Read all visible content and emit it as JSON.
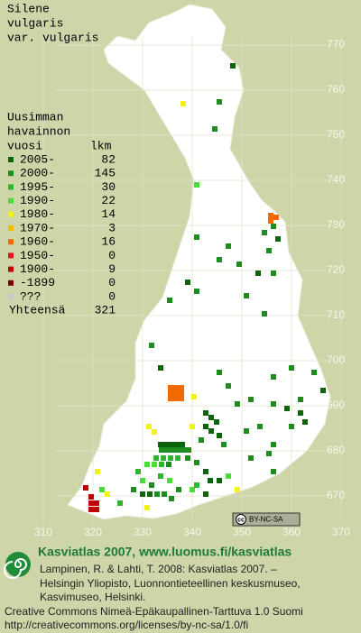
{
  "title": [
    "Silene",
    "vulgaris",
    "var. vulgaris"
  ],
  "legend": {
    "header": [
      "Uusimman",
      "havainnon",
      "vuosi"
    ],
    "count_header": "lkm",
    "items": [
      {
        "label": "2005-",
        "count": 82,
        "color": "#0d640d"
      },
      {
        "label": "2000-",
        "count": 145,
        "color": "#1e8c1e"
      },
      {
        "label": "1995-",
        "count": 30,
        "color": "#2fb52f"
      },
      {
        "label": "1990-",
        "count": 22,
        "color": "#4cdc3a"
      },
      {
        "label": "1980-",
        "count": 14,
        "color": "#f2f21e"
      },
      {
        "label": "1970-",
        "count": 3,
        "color": "#f0c000"
      },
      {
        "label": "1960-",
        "count": 16,
        "color": "#f06a00"
      },
      {
        "label": "1950-",
        "count": 0,
        "color": "#e01818"
      },
      {
        "label": "1900-",
        "count": 9,
        "color": "#c00000"
      },
      {
        "label": "-1899",
        "count": 0,
        "color": "#7a0000"
      },
      {
        "label": "???",
        "count": 0,
        "color": "#c8c8c8"
      }
    ],
    "total_label": "Yhteensä",
    "total": 321
  },
  "map": {
    "yticks": [
      770,
      760,
      750,
      740,
      730,
      720,
      710,
      700,
      690,
      680,
      670
    ],
    "xticks": [
      310,
      320,
      330,
      340,
      350,
      360,
      370
    ]
  },
  "badge": [
    "cc",
    "BY-NC-SA"
  ],
  "footer": {
    "title": "Kasviatlas 2007, www.luomus.fi/kasviatlas",
    "citation": [
      "Lampinen, R. & Lahti, T. 2008: Kasviatlas 2007. –",
      "Helsingin Yliopisto, Luonnontieteellinen keskusmuseo,",
      "Kasvimuseo, Helsinki."
    ],
    "license": [
      "Creative Commons Nimeä-Epäkaupallinen-Tarttuva 1.0 Suomi",
      "http://creativecommons.org/licenses/by-nc-sa/1.0/fi"
    ]
  }
}
